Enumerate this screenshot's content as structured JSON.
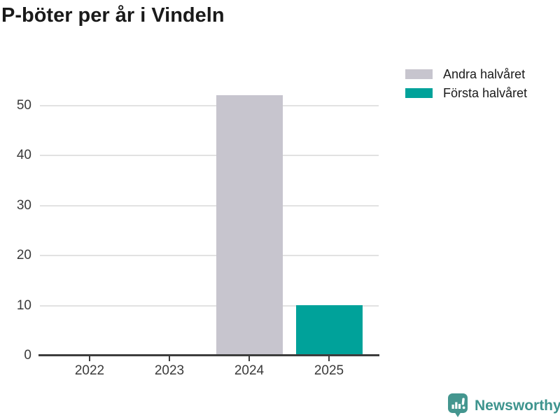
{
  "title": "P-böter per år i Vindeln",
  "branding": {
    "name": "Newsworthy"
  },
  "colors": {
    "bar_gray": "#c7c5ce",
    "bar_teal": "#00a29a",
    "logo_teal": "#44968f",
    "axis": "#3d3d3d",
    "grid": "#e2e2e2",
    "title_text": "#1a1a1a",
    "tick_text": "#3a3a3a"
  },
  "chart_data": {
    "type": "bar",
    "title": "P-böter per år i Vindeln",
    "xlabel": "",
    "ylabel": "",
    "categories": [
      "2022",
      "2023",
      "2024",
      "2025"
    ],
    "series": [
      {
        "name": "Andra halvåret",
        "color": "#c7c5ce",
        "values": [
          0,
          0,
          52,
          0
        ]
      },
      {
        "name": "Första halvåret",
        "color": "#00a29a",
        "values": [
          0,
          0,
          0,
          10
        ]
      }
    ],
    "yticks": [
      0,
      10,
      20,
      30,
      40,
      50
    ],
    "ylim": [
      0,
      52
    ],
    "grid": true,
    "legend_position": "top-right"
  }
}
